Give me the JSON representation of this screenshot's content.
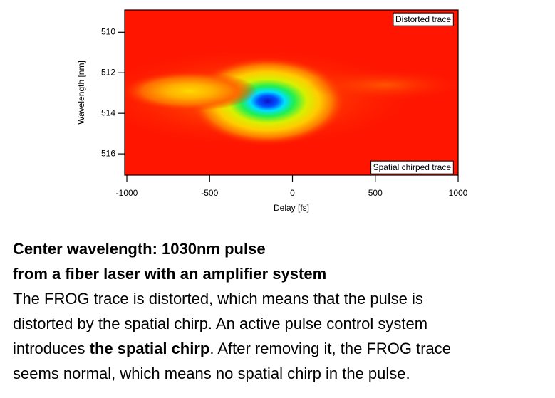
{
  "chart_data": {
    "type": "heatmap",
    "xlabel": "Delay [fs]",
    "ylabel": "Wavelength [nm]",
    "xlim": [
      -1013,
      1000
    ],
    "xticks": [
      -1000,
      -500,
      0,
      500,
      1000
    ],
    "ylim": [
      508.9,
      517.05
    ],
    "yticks": [
      510,
      512,
      514,
      516
    ],
    "y_inverted": true,
    "background_color": "#ff1500",
    "peaks": [
      {
        "x": -150,
        "y": 513.4
      },
      {
        "x": -620,
        "y": 512.9
      },
      {
        "x": 560,
        "y": 512.6
      }
    ],
    "annotations": [
      "Distorted trace",
      "Spatial chirped trace"
    ]
  },
  "caption": {
    "heading": [
      "Center wavelength: 1030nm pulse",
      "from a fiber laser with an amplifier system"
    ],
    "body_lines": [
      [
        "The FROG trace is distorted, which means that the pulse is"
      ],
      [
        "distorted by the spatial chirp. An active pulse control system"
      ],
      [
        "introduces ",
        "the spatial chirp",
        ". After removing it, the FROG trace"
      ],
      [
        "seems normal, which means no spatial chirp in the pulse."
      ]
    ]
  }
}
